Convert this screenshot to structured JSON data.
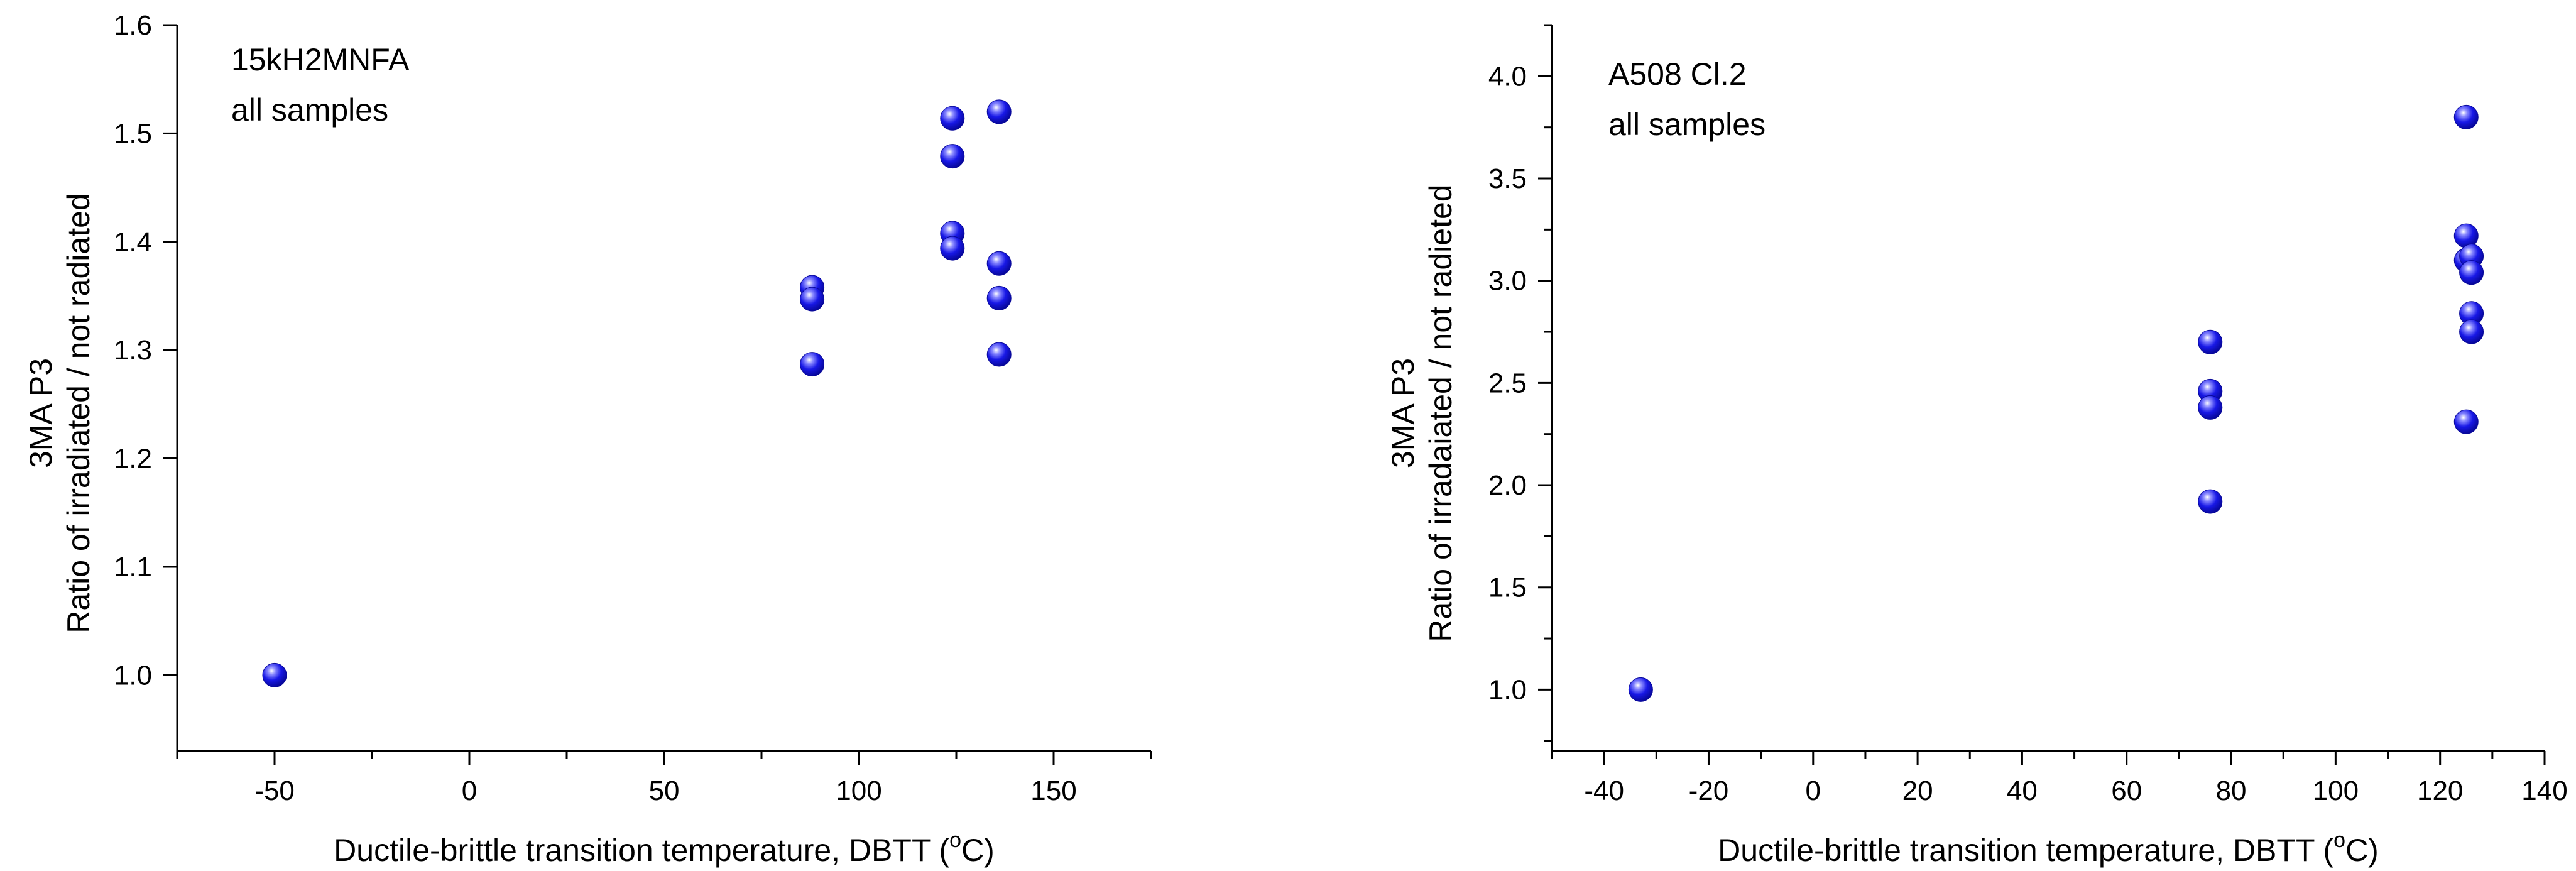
{
  "chart_data": [
    {
      "type": "scatter",
      "title": "",
      "annotations": [
        "15kH2MNFA",
        "all samples"
      ],
      "xlabel": "Ductile-brittle transition temperature, DBTT (°C)",
      "xlabel_parts": {
        "main": "Ductile-brittle transition temperature, DBTT (",
        "sup": "o",
        "unit": "C)"
      },
      "ylabel_lines": [
        "3MA  P3",
        "Ratio of irradiated / not radiated"
      ],
      "xlim": [
        -75,
        175
      ],
      "ylim": [
        0.93,
        1.6
      ],
      "xticks": [
        -50,
        0,
        50,
        100,
        150
      ],
      "yticks": [
        "1.0",
        "1.1",
        "1.2",
        "1.3",
        "1.4",
        "1.5",
        "1.6"
      ],
      "series": [
        {
          "name": "samples",
          "color": "#1515e0",
          "points": [
            {
              "x": -50,
              "y": 1.0
            },
            {
              "x": 88,
              "y": 1.358
            },
            {
              "x": 88,
              "y": 1.347
            },
            {
              "x": 88,
              "y": 1.287
            },
            {
              "x": 124,
              "y": 1.514
            },
            {
              "x": 124,
              "y": 1.479
            },
            {
              "x": 124,
              "y": 1.408
            },
            {
              "x": 124,
              "y": 1.394
            },
            {
              "x": 136,
              "y": 1.52
            },
            {
              "x": 136,
              "y": 1.38
            },
            {
              "x": 136,
              "y": 1.348
            },
            {
              "x": 136,
              "y": 1.296
            }
          ]
        }
      ]
    },
    {
      "type": "scatter",
      "title": "",
      "annotations": [
        "A508 Cl.2",
        "all samples"
      ],
      "xlabel": "Ductile-brittle transition temperature, DBTT (°C)",
      "xlabel_parts": {
        "main": "Ductile-brittle transition temperature, DBTT (",
        "sup": "o",
        "unit": "C)"
      },
      "ylabel_lines": [
        "3MA  P3",
        "Ratio of irradaiated / not radieted"
      ],
      "xlim": [
        -50,
        140
      ],
      "ylim": [
        0.7,
        4.25
      ],
      "xticks": [
        -40,
        -20,
        0,
        20,
        40,
        60,
        80,
        100,
        120,
        140
      ],
      "yticks": [
        "1.0",
        "1.5",
        "2.0",
        "2.5",
        "3.0",
        "3.5",
        "4.0"
      ],
      "series": [
        {
          "name": "samples",
          "color": "#1515e0",
          "points": [
            {
              "x": -33,
              "y": 1.0
            },
            {
              "x": 76,
              "y": 2.7
            },
            {
              "x": 76,
              "y": 2.46
            },
            {
              "x": 76,
              "y": 2.38
            },
            {
              "x": 76,
              "y": 1.92
            },
            {
              "x": 125,
              "y": 3.8
            },
            {
              "x": 125,
              "y": 3.22
            },
            {
              "x": 125,
              "y": 3.1
            },
            {
              "x": 126,
              "y": 3.12
            },
            {
              "x": 126,
              "y": 3.04
            },
            {
              "x": 126,
              "y": 2.84
            },
            {
              "x": 126,
              "y": 2.75
            },
            {
              "x": 125,
              "y": 2.31
            }
          ]
        }
      ]
    }
  ]
}
